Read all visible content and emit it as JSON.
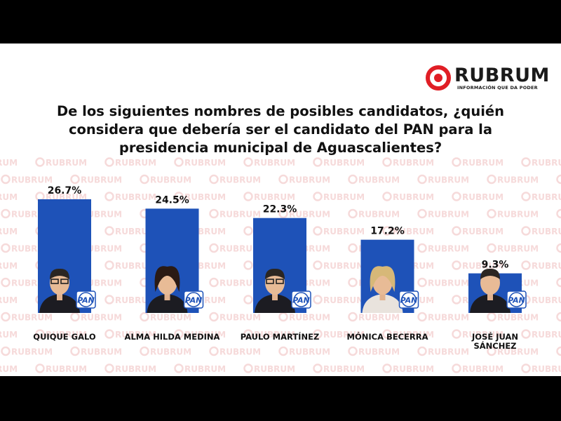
{
  "brand": {
    "name": "RUBRUM",
    "tagline": "INFORMACIÓN QUE DA PODER",
    "color": "#e01e25"
  },
  "watermark": {
    "text": "RUBRUM",
    "color": "#f6dada"
  },
  "title_lines": [
    "De los siguientes nombres de posibles candidatos, ¿quién",
    "considera que debería ser el candidato del PAN para la",
    "presidencia municipal de Aguascalientes?"
  ],
  "party_badge": "PAN",
  "colors": {
    "bar": "#1e52b8",
    "badge": "#1e52b8",
    "text": "#111111"
  },
  "chart_data": {
    "type": "bar",
    "title": "De los siguientes nombres de posibles candidatos, ¿quién considera que debería ser el candidato del PAN para la presidencia municipal de Aguascalientes?",
    "categories": [
      "QUIQUE GALO",
      "ALMA HILDA MEDINA",
      "PAULO MARTÍNEZ",
      "MÓNICA BECERRA",
      "JOSÉ JUAN SÁNCHEZ"
    ],
    "category_lines": [
      [
        "QUIQUE GALO"
      ],
      [
        "ALMA HILDA MEDINA"
      ],
      [
        "PAULO MARTÍNEZ"
      ],
      [
        "MÓNICA BECERRA"
      ],
      [
        "JOSÉ JUAN",
        "SÁNCHEZ"
      ]
    ],
    "values": [
      26.7,
      24.5,
      22.3,
      17.2,
      9.3
    ],
    "value_labels": [
      "26.7%",
      "24.5%",
      "22.3%",
      "17.2%",
      "9.3%"
    ],
    "ylim": [
      0,
      26.7
    ],
    "grid": false,
    "legend": "none"
  }
}
